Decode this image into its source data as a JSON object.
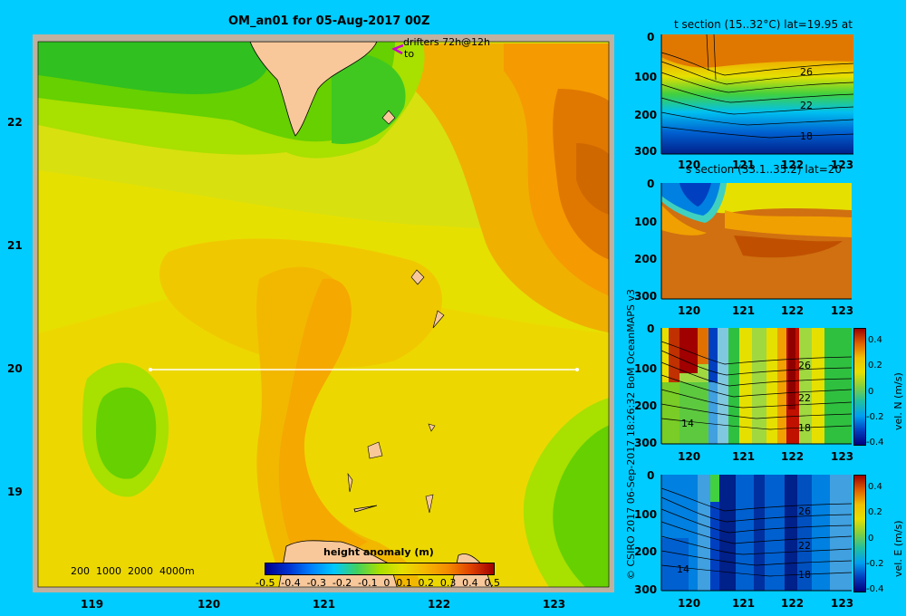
{
  "main_map": {
    "title": "OM_an01 for 05-Aug-2017 00Z",
    "drifters_label": "drifters 72h@12h",
    "to_label": "to",
    "lat_ticks": [
      "22",
      "21",
      "20",
      "19"
    ],
    "lon_ticks": [
      "119",
      "120",
      "121",
      "122",
      "123"
    ],
    "depth_legend": [
      "200",
      "1000",
      "2000",
      "4000m"
    ],
    "colorbar_title": "height anomaly (m)",
    "colorbar_ticks": [
      "-0.5",
      "-0.4",
      "-0.3",
      "-0.2",
      "-0.1",
      "0",
      "0.1",
      "0.2",
      "0.3",
      "0.4",
      "0.5"
    ],
    "section_line": {
      "lat": 20,
      "lon_start": 119.5,
      "lon_end": 123.2
    }
  },
  "panels": [
    {
      "title": "t section (15..32°C) lat=19.95 at",
      "depth_ticks": [
        "0",
        "100",
        "200",
        "300"
      ],
      "lon_ticks": [
        "120",
        "121",
        "122",
        "123"
      ],
      "contour_labels": [
        "26",
        "22",
        "18"
      ]
    },
    {
      "title": "s section (33.1..35.2) lat=20",
      "depth_ticks": [
        "0",
        "100",
        "200",
        "300"
      ],
      "lon_ticks": [
        "120",
        "121",
        "122",
        "123"
      ],
      "contour_labels": []
    },
    {
      "title": "",
      "depth_ticks": [
        "0",
        "100",
        "200",
        "300"
      ],
      "lon_ticks": [
        "120",
        "121",
        "122",
        "123"
      ],
      "contour_labels": [
        "26",
        "22",
        "18",
        "14"
      ],
      "colorbar_ticks": [
        "0.4",
        "0.2",
        "0",
        "-0.2",
        "-0.4"
      ],
      "colorbar_label": "vel. N (m/s)"
    },
    {
      "title": "",
      "depth_ticks": [
        "0",
        "100",
        "200",
        "300"
      ],
      "lon_ticks": [
        "120",
        "121",
        "122",
        "123"
      ],
      "contour_labels": [
        "26",
        "22",
        "18",
        "14"
      ],
      "colorbar_ticks": [
        "0.4",
        "0.2",
        "0",
        "-0.2",
        "-0.4"
      ],
      "colorbar_label": "vel. E (m/s)"
    }
  ],
  "credit": "© CSIRO 2017   06-Sep-2017 18:26:32 BoM OceanMAPS v3",
  "colors": {
    "background": "#00ccff",
    "land": "#f8c89a",
    "shelf": "#c0b0a0",
    "section_line": "#ffffff",
    "drifter": "#cc00cc"
  }
}
